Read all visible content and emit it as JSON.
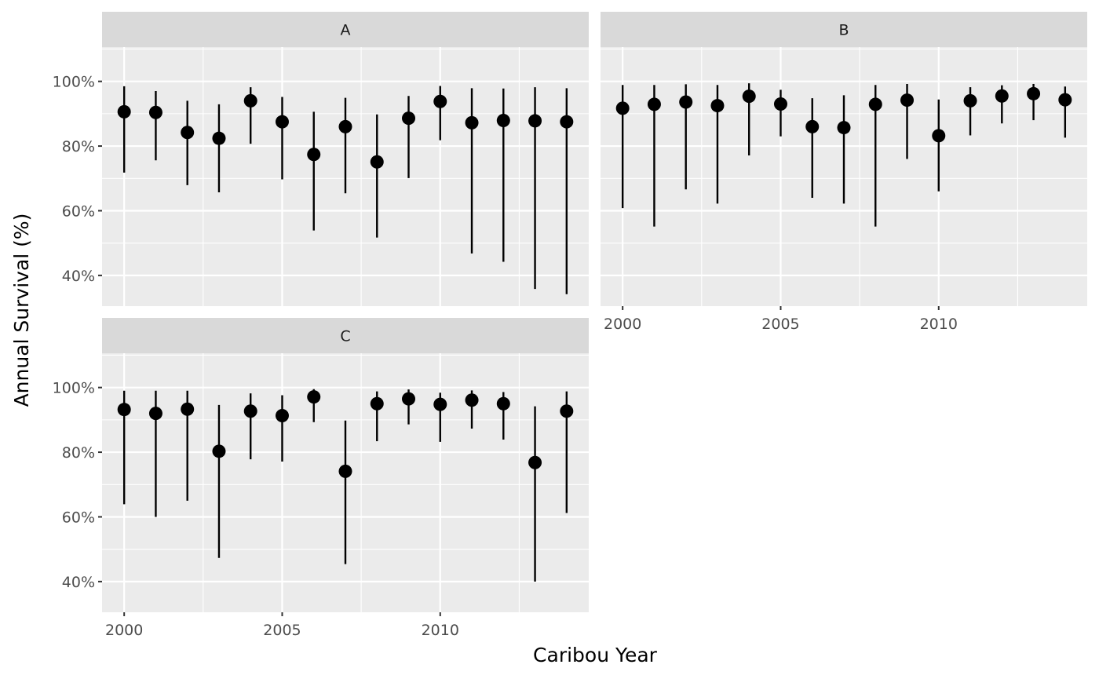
{
  "chart_data": {
    "type": "scatter",
    "subtype": "point-with-error-bars, faceted",
    "xlabel": "Caribou Year",
    "ylabel": "Annual Survival (%)",
    "xlim": [
      1999.3,
      2014.7
    ],
    "ylim": [
      30.5,
      110.6
    ],
    "x_ticks": [
      2000,
      2005,
      2010
    ],
    "x_tick_labels": [
      "2000",
      "2005",
      "2010"
    ],
    "y_ticks": [
      40,
      60,
      80,
      100
    ],
    "y_tick_labels": [
      "40%",
      "60%",
      "80%",
      "100%"
    ],
    "grid": true,
    "colors": {
      "panel_background": "#ebebeb",
      "strip_background": "#d9d9d9",
      "gridline": "#ffffff",
      "point": "#000000"
    },
    "panels": [
      {
        "name": "A",
        "x": [
          2000,
          2001,
          2002,
          2003,
          2004,
          2005,
          2006,
          2007,
          2008,
          2009,
          2010,
          2011,
          2012,
          2013,
          2014
        ],
        "estimate": [
          90.6,
          90.4,
          84.2,
          82.4,
          94.0,
          87.5,
          77.4,
          86.0,
          75.1,
          88.6,
          93.8,
          87.2,
          87.9,
          87.8,
          87.5
        ],
        "lower": [
          71.8,
          75.6,
          67.9,
          65.7,
          80.7,
          69.7,
          53.9,
          65.4,
          51.7,
          70.1,
          81.8,
          46.8,
          44.2,
          35.8,
          34.2
        ],
        "upper": [
          98.5,
          97.0,
          94.0,
          92.9,
          98.2,
          95.2,
          90.6,
          94.9,
          89.8,
          95.5,
          98.6,
          97.9,
          97.8,
          98.2,
          97.9
        ]
      },
      {
        "name": "B",
        "x": [
          2000,
          2001,
          2002,
          2003,
          2004,
          2005,
          2006,
          2007,
          2008,
          2009,
          2010,
          2011,
          2012,
          2013,
          2014
        ],
        "estimate": [
          91.7,
          92.9,
          93.6,
          92.5,
          95.4,
          93.0,
          86.0,
          85.7,
          92.9,
          94.2,
          83.2,
          94.0,
          95.5,
          96.2,
          94.3
        ],
        "lower": [
          60.8,
          55.1,
          66.6,
          62.2,
          77.1,
          83.0,
          64.0,
          62.2,
          55.1,
          76.0,
          66.0,
          83.3,
          87.0,
          88.0,
          82.6
        ],
        "upper": [
          98.9,
          98.9,
          99.1,
          98.9,
          99.4,
          97.4,
          94.8,
          95.7,
          98.9,
          99.2,
          94.4,
          98.2,
          98.8,
          99.2,
          98.4
        ]
      },
      {
        "name": "C",
        "x": [
          2000,
          2001,
          2002,
          2003,
          2004,
          2005,
          2006,
          2007,
          2008,
          2009,
          2010,
          2011,
          2012,
          2013,
          2014
        ],
        "estimate": [
          93.2,
          92.0,
          93.3,
          80.3,
          92.7,
          91.3,
          97.1,
          74.1,
          95.0,
          96.5,
          94.8,
          96.1,
          95.0,
          76.8,
          92.7
        ],
        "lower": [
          63.9,
          60.0,
          65.0,
          47.3,
          77.8,
          77.1,
          89.3,
          45.4,
          83.4,
          88.6,
          83.2,
          87.3,
          83.9,
          40.0,
          61.2
        ],
        "upper": [
          99.0,
          99.0,
          99.0,
          94.6,
          98.2,
          97.6,
          99.5,
          89.8,
          98.8,
          99.4,
          98.4,
          99.1,
          98.6,
          94.2,
          98.8
        ]
      }
    ]
  }
}
